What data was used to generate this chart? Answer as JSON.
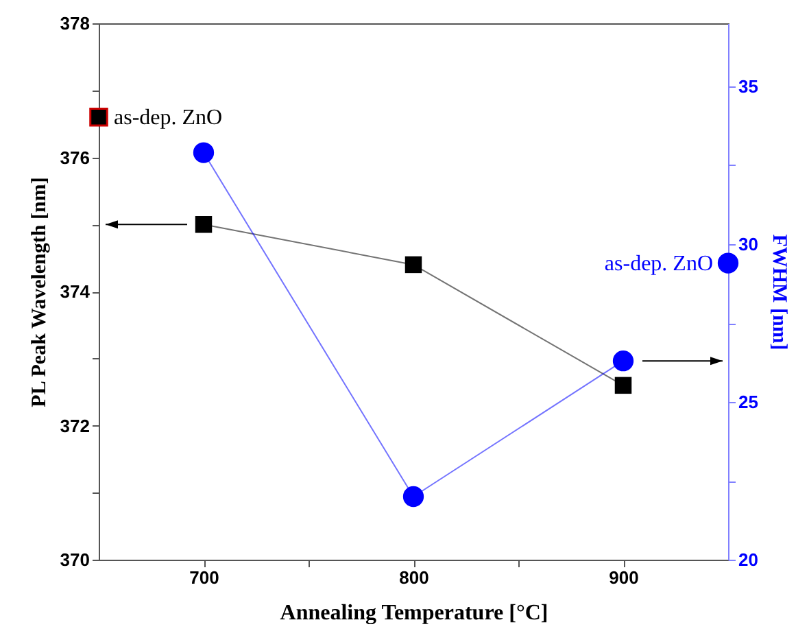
{
  "chart_data": {
    "type": "line",
    "xlabel": "Annealing Temperature [°C]",
    "ylabel": "PL Peak Wavelength [nm]",
    "y2label": "FWHM [nm]",
    "xlim": [
      650,
      950
    ],
    "xticks": [
      700,
      {
        "value": 750,
        "label": null
      },
      800,
      {
        "value": 850,
        "label": null
      },
      900
    ],
    "ylim": [
      370,
      378
    ],
    "yticks": [
      370,
      {
        "value": 371,
        "label": null
      },
      372,
      {
        "value": 373,
        "label": null
      },
      374,
      {
        "value": 375,
        "label": null
      },
      376,
      {
        "value": 377,
        "label": null
      },
      378
    ],
    "y2lim": [
      20,
      37
    ],
    "y2ticks": [
      20,
      {
        "value": 22.5,
        "label": null
      },
      25,
      {
        "value": 27.5,
        "label": null
      },
      30,
      {
        "value": 32.5,
        "label": null
      },
      35
    ],
    "series": [
      {
        "color": "#000000",
        "marker": "square",
        "x": [
          700,
          800,
          900
        ],
        "values": [
          375.0,
          374.4,
          372.6
        ]
      },
      {
        "axis": "y2",
        "color": "#0000ff",
        "marker": "circle",
        "x": [
          700,
          800,
          900
        ],
        "values": [
          32.9,
          22.0,
          26.3
        ]
      },
      {
        "type": "scatter",
        "color": "#000000",
        "marker": "square",
        "x": [
          650
        ],
        "values": [
          376.6
        ]
      },
      {
        "type": "scatter",
        "axis": "y2",
        "color": "#0000ff",
        "marker": "circle",
        "x": [
          950
        ],
        "values": [
          29.4
        ]
      }
    ],
    "annotations": [
      "as-dep. ZnO",
      "as-dep. ZnO"
    ],
    "grid": false
  }
}
